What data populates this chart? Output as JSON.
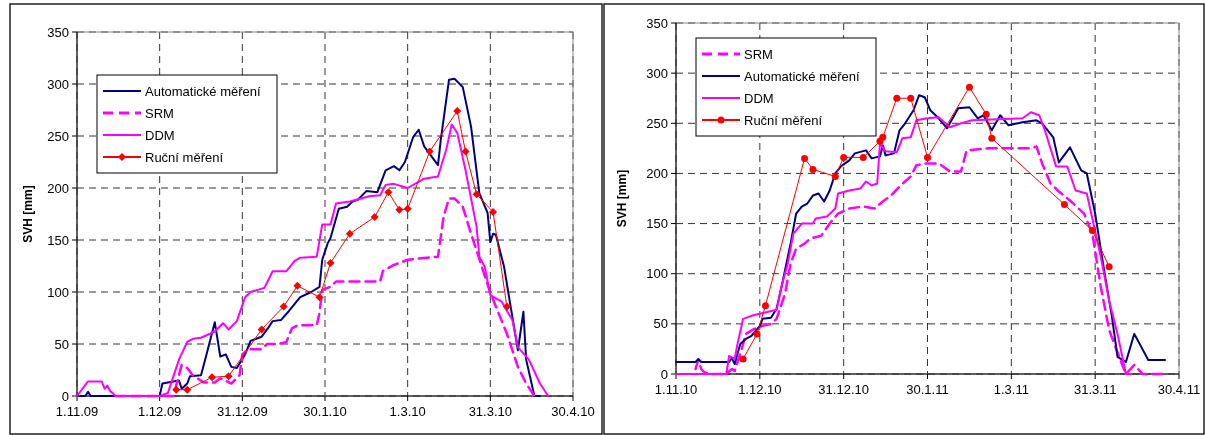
{
  "chart_data": [
    {
      "type": "line",
      "ylabel": "SVH [mm]",
      "grid": true,
      "legend": "top left",
      "xlim": [
        "2009-11-01",
        "2010-04-30"
      ],
      "ylim": [
        0,
        350
      ],
      "yticks": [
        0,
        50,
        100,
        150,
        200,
        250,
        300,
        350
      ],
      "xticks": [
        {
          "value": "2009-11-01",
          "label": "1.11.09"
        },
        {
          "value": "2009-12-01",
          "label": "1.12.09"
        },
        {
          "value": "2009-12-31",
          "label": "31.12.09"
        },
        {
          "value": "2010-01-30",
          "label": "30.1.10"
        },
        {
          "value": "2010-03-01",
          "label": "1.3.10"
        },
        {
          "value": "2010-03-31",
          "label": "31.3.10"
        },
        {
          "value": "2010-04-30",
          "label": "30.4.10"
        }
      ],
      "series": [
        {
          "name": "Automatické měření",
          "color": "#000080",
          "line_style": "solid",
          "marker": "none",
          "x": [
            "2009-11-01",
            "2009-11-04",
            "2009-11-05",
            "2009-11-06",
            "2009-12-01",
            "2009-12-02",
            "2009-12-06",
            "2009-12-08",
            "2009-12-09",
            "2009-12-11",
            "2009-12-12",
            "2009-12-16",
            "2009-12-18",
            "2009-12-21",
            "2009-12-23",
            "2009-12-25",
            "2009-12-27",
            "2009-12-29",
            "2010-01-01",
            "2010-01-03",
            "2010-01-07",
            "2010-01-09",
            "2010-01-11",
            "2010-01-14",
            "2010-01-17",
            "2010-01-21",
            "2010-01-25",
            "2010-01-28",
            "2010-01-29",
            "2010-01-31",
            "2010-02-01",
            "2010-02-04",
            "2010-02-07",
            "2010-02-09",
            "2010-02-11",
            "2010-02-14",
            "2010-02-18",
            "2010-02-21",
            "2010-02-24",
            "2010-02-26",
            "2010-02-28",
            "2010-03-03",
            "2010-03-05",
            "2010-03-07",
            "2010-03-12",
            "2010-03-13",
            "2010-03-16",
            "2010-03-18",
            "2010-03-21",
            "2010-03-24",
            "2010-03-27",
            "2010-03-30",
            "2010-03-31",
            "2010-04-01",
            "2010-04-02",
            "2010-04-05",
            "2010-04-07",
            "2010-04-10",
            "2010-04-12",
            "2010-04-13",
            "2010-04-16",
            "2010-04-18"
          ],
          "values": [
            0,
            0,
            4,
            0,
            0,
            12,
            14,
            15,
            7,
            12,
            19,
            20,
            40,
            71,
            38,
            40,
            28,
            27,
            40,
            53,
            57,
            64,
            72,
            73,
            82,
            95,
            100,
            105,
            131,
            147,
            152,
            180,
            182,
            187,
            189,
            197,
            196,
            217,
            221,
            217,
            225,
            249,
            256,
            240,
            222,
            246,
            304,
            305,
            297,
            259,
            195,
            176,
            148,
            156,
            155,
            124,
            92,
            44,
            81,
            35,
            0,
            0
          ]
        },
        {
          "name": "SRM",
          "color": "#ff00ff",
          "line_style": "dashed",
          "marker": "none",
          "x": [
            "2009-11-15",
            "2009-12-06",
            "2009-12-09",
            "2009-12-11",
            "2009-12-13",
            "2009-12-17",
            "2009-12-21",
            "2009-12-23",
            "2009-12-27",
            "2009-12-30",
            "2009-12-31",
            "2010-01-02",
            "2010-01-07",
            "2010-01-09",
            "2010-01-13",
            "2010-01-16",
            "2010-01-18",
            "2010-01-20",
            "2010-01-27",
            "2010-01-28",
            "2010-01-29",
            "2010-02-01",
            "2010-02-03",
            "2010-02-19",
            "2010-02-20",
            "2010-02-24",
            "2010-03-01",
            "2010-03-12",
            "2010-03-14",
            "2010-03-16",
            "2010-03-18",
            "2010-03-21",
            "2010-03-24",
            "2010-03-26",
            "2010-03-31",
            "2010-04-02",
            "2010-04-06",
            "2010-04-08",
            "2010-04-10",
            "2010-04-13",
            "2010-04-16"
          ],
          "values": [
            0,
            0,
            30,
            27,
            20,
            13,
            13,
            17,
            12,
            20,
            40,
            45,
            45,
            50,
            50,
            52,
            65,
            68,
            68,
            80,
            102,
            105,
            110,
            110,
            120,
            126,
            131,
            134,
            172,
            190,
            190,
            182,
            156,
            140,
            99,
            86,
            60,
            44,
            28,
            12,
            0
          ]
        },
        {
          "name": "DDM",
          "color": "#ff00ff",
          "line_style": "solid",
          "marker": "none",
          "x": [
            "2009-11-01",
            "2009-11-05",
            "2009-11-10",
            "2009-11-11",
            "2009-11-12",
            "2009-11-13",
            "2009-11-15",
            "2009-12-01",
            "2009-12-04",
            "2009-12-08",
            "2009-12-11",
            "2009-12-13",
            "2009-12-16",
            "2009-12-21",
            "2009-12-24",
            "2009-12-26",
            "2009-12-29",
            "2010-01-01",
            "2010-01-03",
            "2010-01-08",
            "2010-01-11",
            "2010-01-16",
            "2010-01-19",
            "2010-01-21",
            "2010-01-27",
            "2010-01-29",
            "2010-02-01",
            "2010-02-03",
            "2010-02-08",
            "2010-02-15",
            "2010-02-19",
            "2010-02-21",
            "2010-02-24",
            "2010-03-01",
            "2010-03-07",
            "2010-03-12",
            "2010-03-15",
            "2010-03-17",
            "2010-03-19",
            "2010-03-22",
            "2010-03-26",
            "2010-03-27",
            "2010-03-29",
            "2010-03-31",
            "2010-04-04",
            "2010-04-08",
            "2010-04-10",
            "2010-04-14",
            "2010-04-18",
            "2010-04-21"
          ],
          "values": [
            0,
            14,
            14,
            7,
            10,
            5,
            0,
            0,
            3,
            35,
            52,
            55,
            56,
            62,
            70,
            64,
            72,
            95,
            100,
            104,
            120,
            120,
            130,
            133,
            134,
            165,
            165,
            185,
            187,
            192,
            193,
            203,
            204,
            200,
            209,
            211,
            237,
            261,
            253,
            217,
            163,
            134,
            124,
            97,
            91,
            73,
            47,
            35,
            12,
            0
          ]
        },
        {
          "name": "Ruční měření",
          "color": "#ff0000",
          "line_style": "solid",
          "marker": "diamond",
          "x": [
            "2009-12-07",
            "2009-12-11",
            "2009-12-20",
            "2009-12-26",
            "2010-01-07",
            "2010-01-15",
            "2010-01-20",
            "2010-01-28",
            "2010-02-01",
            "2010-02-08",
            "2010-02-17",
            "2010-02-22",
            "2010-02-26",
            "2010-03-01",
            "2010-03-09",
            "2010-03-19",
            "2010-03-22",
            "2010-03-26",
            "2010-04-01",
            "2010-04-06"
          ],
          "values": [
            6,
            6,
            18,
            19,
            64,
            86,
            106,
            95,
            128,
            156,
            172,
            196,
            179,
            180,
            235,
            274,
            235,
            194,
            177,
            86
          ]
        }
      ]
    },
    {
      "type": "line",
      "ylabel": "SVH [mm]",
      "grid": true,
      "legend": "top left",
      "xlim": [
        "2010-11-01",
        "2011-04-30"
      ],
      "ylim": [
        0,
        350
      ],
      "yticks": [
        0,
        50,
        100,
        150,
        200,
        250,
        300,
        350
      ],
      "xticks": [
        {
          "value": "2010-11-01",
          "label": "1.11.10"
        },
        {
          "value": "2010-12-01",
          "label": "1.12.10"
        },
        {
          "value": "2010-12-31",
          "label": "31.12.10"
        },
        {
          "value": "2011-01-30",
          "label": "30.1.11"
        },
        {
          "value": "2011-03-01",
          "label": "1.3.11"
        },
        {
          "value": "2011-03-31",
          "label": "31.3.11"
        },
        {
          "value": "2011-04-30",
          "label": "30.4.11"
        }
      ],
      "series": [
        {
          "name": "SRM",
          "color": "#ff00ff",
          "line_style": "dashed",
          "marker": "none",
          "x": [
            "2010-11-08",
            "2010-11-09",
            "2010-11-10",
            "2010-11-11",
            "2010-11-13",
            "2010-11-19",
            "2010-11-21",
            "2010-11-22",
            "2010-11-24",
            "2010-11-26",
            "2010-11-29",
            "2010-12-02",
            "2010-12-05",
            "2010-12-07",
            "2010-12-10",
            "2010-12-12",
            "2010-12-14",
            "2010-12-17",
            "2010-12-19",
            "2010-12-23",
            "2010-12-26",
            "2010-12-29",
            "2011-01-02",
            "2011-01-07",
            "2011-01-11",
            "2011-01-14",
            "2011-01-17",
            "2011-01-20",
            "2011-01-24",
            "2011-01-26",
            "2011-01-29",
            "2011-02-03",
            "2011-02-07",
            "2011-02-11",
            "2011-02-13",
            "2011-02-21",
            "2011-03-08",
            "2011-03-10",
            "2011-03-12",
            "2011-03-15",
            "2011-03-18",
            "2011-03-22",
            "2011-03-27",
            "2011-03-30",
            "2011-04-02",
            "2011-04-05",
            "2011-04-09",
            "2011-04-11",
            "2011-04-14",
            "2011-04-17",
            "2011-04-25"
          ],
          "values": [
            5,
            14,
            5,
            2,
            0,
            0,
            5,
            3,
            20,
            40,
            45,
            48,
            50,
            55,
            80,
            110,
            125,
            130,
            135,
            138,
            150,
            160,
            165,
            167,
            165,
            172,
            178,
            187,
            197,
            208,
            210,
            210,
            202,
            202,
            223,
            225,
            225,
            227,
            210,
            190,
            182,
            173,
            160,
            140,
            87,
            44,
            14,
            0,
            9,
            0,
            0
          ]
        },
        {
          "name": "Automatické měření",
          "color": "#000080",
          "line_style": "solid",
          "marker": "none",
          "x": [
            "2010-11-01",
            "2010-11-08",
            "2010-11-09",
            "2010-11-10",
            "2010-11-20",
            "2010-11-21",
            "2010-11-22",
            "2010-11-24",
            "2010-11-26",
            "2010-11-28",
            "2010-12-01",
            "2010-12-02",
            "2010-12-05",
            "2010-12-07",
            "2010-12-09",
            "2010-12-12",
            "2010-12-14",
            "2010-12-16",
            "2010-12-18",
            "2010-12-20",
            "2010-12-22",
            "2010-12-24",
            "2010-12-26",
            "2010-12-28",
            "2010-12-30",
            "2011-01-02",
            "2011-01-04",
            "2011-01-08",
            "2011-01-10",
            "2011-01-13",
            "2011-01-14",
            "2011-01-15",
            "2011-01-18",
            "2011-01-20",
            "2011-01-22",
            "2011-01-25",
            "2011-01-27",
            "2011-01-29",
            "2011-01-31",
            "2011-02-03",
            "2011-02-06",
            "2011-02-10",
            "2011-02-14",
            "2011-02-17",
            "2011-02-19",
            "2011-02-22",
            "2011-02-25",
            "2011-02-28",
            "2011-03-05",
            "2011-03-10",
            "2011-03-12",
            "2011-03-16",
            "2011-03-18",
            "2011-03-22",
            "2011-03-26",
            "2011-03-28",
            "2011-03-31",
            "2011-04-03",
            "2011-04-06",
            "2011-04-08",
            "2011-04-11",
            "2011-04-14",
            "2011-04-19",
            "2011-04-25"
          ],
          "values": [
            12,
            12,
            15,
            12,
            12,
            16,
            10,
            30,
            35,
            38,
            48,
            55,
            56,
            65,
            90,
            130,
            160,
            167,
            170,
            178,
            180,
            172,
            183,
            200,
            207,
            213,
            220,
            223,
            215,
            217,
            228,
            218,
            220,
            243,
            250,
            263,
            278,
            276,
            263,
            255,
            245,
            265,
            266,
            255,
            258,
            243,
            258,
            248,
            251,
            253,
            250,
            236,
            211,
            226,
            203,
            200,
            160,
            107,
            57,
            17,
            12,
            40,
            14,
            14
          ]
        },
        {
          "name": "DDM",
          "color": "#ff00ff",
          "line_style": "solid",
          "marker": "none",
          "x": [
            "2010-11-01",
            "2010-11-19",
            "2010-11-20",
            "2010-11-22",
            "2010-11-23",
            "2010-11-25",
            "2010-11-28",
            "2010-12-01",
            "2010-12-04",
            "2010-12-07",
            "2010-12-09",
            "2010-12-11",
            "2010-12-13",
            "2010-12-16",
            "2010-12-20",
            "2010-12-21",
            "2010-12-25",
            "2010-12-28",
            "2010-12-29",
            "2011-01-02",
            "2011-01-06",
            "2011-01-08",
            "2011-01-10",
            "2011-01-12",
            "2011-01-13",
            "2011-01-15",
            "2011-01-19",
            "2011-01-21",
            "2011-01-24",
            "2011-01-26",
            "2011-01-30",
            "2011-02-03",
            "2011-02-07",
            "2011-02-11",
            "2011-02-15",
            "2011-03-05",
            "2011-03-08",
            "2011-03-11",
            "2011-03-13",
            "2011-03-17",
            "2011-03-21",
            "2011-03-24",
            "2011-03-28",
            "2011-04-02",
            "2011-04-05",
            "2011-04-08",
            "2011-04-11",
            "2011-04-13"
          ],
          "values": [
            0,
            0,
            18,
            15,
            30,
            55,
            58,
            60,
            62,
            64,
            90,
            110,
            140,
            150,
            150,
            155,
            157,
            165,
            180,
            183,
            185,
            192,
            188,
            190,
            230,
            222,
            221,
            235,
            236,
            253,
            255,
            256,
            246,
            250,
            253,
            255,
            261,
            258,
            243,
            207,
            207,
            183,
            180,
            117,
            73,
            40,
            0,
            0
          ]
        },
        {
          "name": "Ruční měření",
          "color": "#ff0000",
          "line_style": "solid",
          "marker": "circle",
          "x": [
            "2010-11-25",
            "2010-11-30",
            "2010-12-03",
            "2010-12-17",
            "2010-12-20",
            "2010-12-28",
            "2010-12-31",
            "2011-01-07",
            "2011-01-13",
            "2011-01-14",
            "2011-01-19",
            "2011-01-24",
            "2011-01-30",
            "2011-02-14",
            "2011-02-20",
            "2011-02-22",
            "2011-03-20",
            "2011-03-30",
            "2011-04-05"
          ],
          "values": [
            15,
            40,
            68,
            215,
            204,
            197,
            216,
            216,
            232,
            236,
            275,
            275,
            216,
            286,
            259,
            235,
            169,
            143,
            107
          ]
        }
      ]
    }
  ]
}
